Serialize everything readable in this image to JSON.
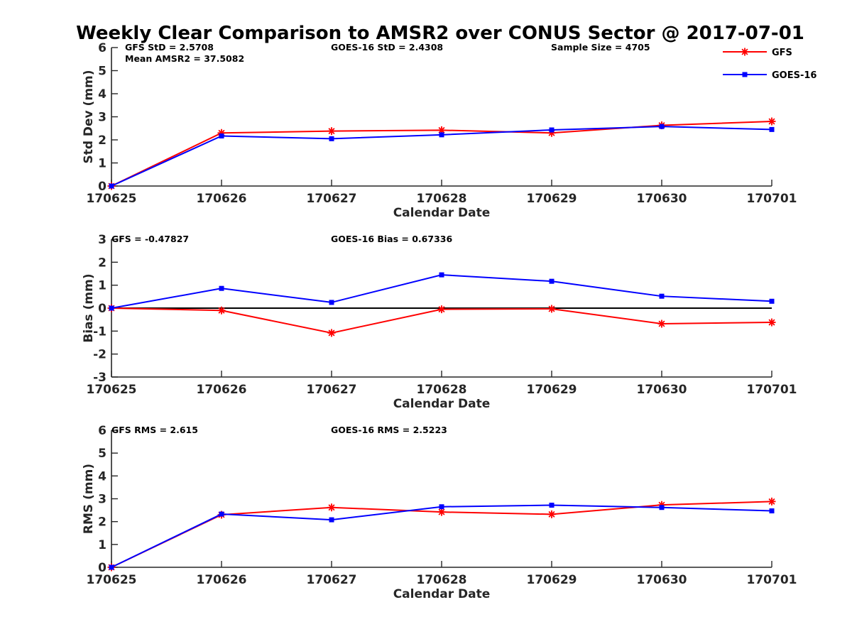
{
  "title": "Weekly Clear Comparison to AMSR2 over CONUS Sector @ 2017-07-01",
  "legend": {
    "position": "top-right",
    "entries": [
      {
        "name": "GFS",
        "color": "#ff0000",
        "marker": "asterisk"
      },
      {
        "name": "GOES-16",
        "color": "#0000ff",
        "marker": "square"
      }
    ]
  },
  "chart_data": [
    {
      "type": "line",
      "xlabel": "Calendar Date",
      "ylabel": "Std Dev (mm)",
      "ylim": [
        0,
        6
      ],
      "yticks": [
        0,
        1,
        2,
        3,
        4,
        5,
        6
      ],
      "categories": [
        "170625",
        "170626",
        "170627",
        "170628",
        "170629",
        "170630",
        "170701"
      ],
      "series": [
        {
          "name": "GFS",
          "values": [
            0.0,
            2.3,
            2.38,
            2.42,
            2.3,
            2.63,
            2.8
          ]
        },
        {
          "name": "GOES-16",
          "values": [
            0.0,
            2.17,
            2.05,
            2.22,
            2.43,
            2.58,
            2.45
          ]
        }
      ],
      "annotations": [
        "GFS StD = 2.5708",
        "Mean AMSR2 = 37.5082",
        "GOES-16 StD = 2.4308",
        "Sample Size = 4705"
      ]
    },
    {
      "type": "line",
      "xlabel": "Calendar Date",
      "ylabel": "Bias (mm)",
      "ylim": [
        -3,
        3
      ],
      "yticks": [
        -3,
        -2,
        -1,
        0,
        1,
        2,
        3
      ],
      "zero_line": true,
      "categories": [
        "170625",
        "170626",
        "170627",
        "170628",
        "170629",
        "170630",
        "170701"
      ],
      "series": [
        {
          "name": "GFS",
          "values": [
            0.0,
            -0.1,
            -1.08,
            -0.05,
            -0.03,
            -0.68,
            -0.62
          ]
        },
        {
          "name": "GOES-16",
          "values": [
            0.0,
            0.86,
            0.25,
            1.45,
            1.17,
            0.52,
            0.3
          ]
        }
      ],
      "annotations": [
        "GFS = -0.47827",
        "GOES-16 Bias  = 0.67336"
      ]
    },
    {
      "type": "line",
      "xlabel": "Calendar Date",
      "ylabel": "RMS (mm)",
      "ylim": [
        0,
        6
      ],
      "yticks": [
        0,
        1,
        2,
        3,
        4,
        5,
        6
      ],
      "categories": [
        "170625",
        "170626",
        "170627",
        "170628",
        "170629",
        "170630",
        "170701"
      ],
      "series": [
        {
          "name": "GFS",
          "values": [
            0.0,
            2.3,
            2.62,
            2.42,
            2.32,
            2.73,
            2.88
          ]
        },
        {
          "name": "GOES-16",
          "values": [
            0.0,
            2.33,
            2.08,
            2.65,
            2.72,
            2.62,
            2.47
          ]
        }
      ],
      "annotations": [
        "GFS RMS = 2.615",
        "GOES-16 RMS = 2.5223"
      ]
    }
  ]
}
